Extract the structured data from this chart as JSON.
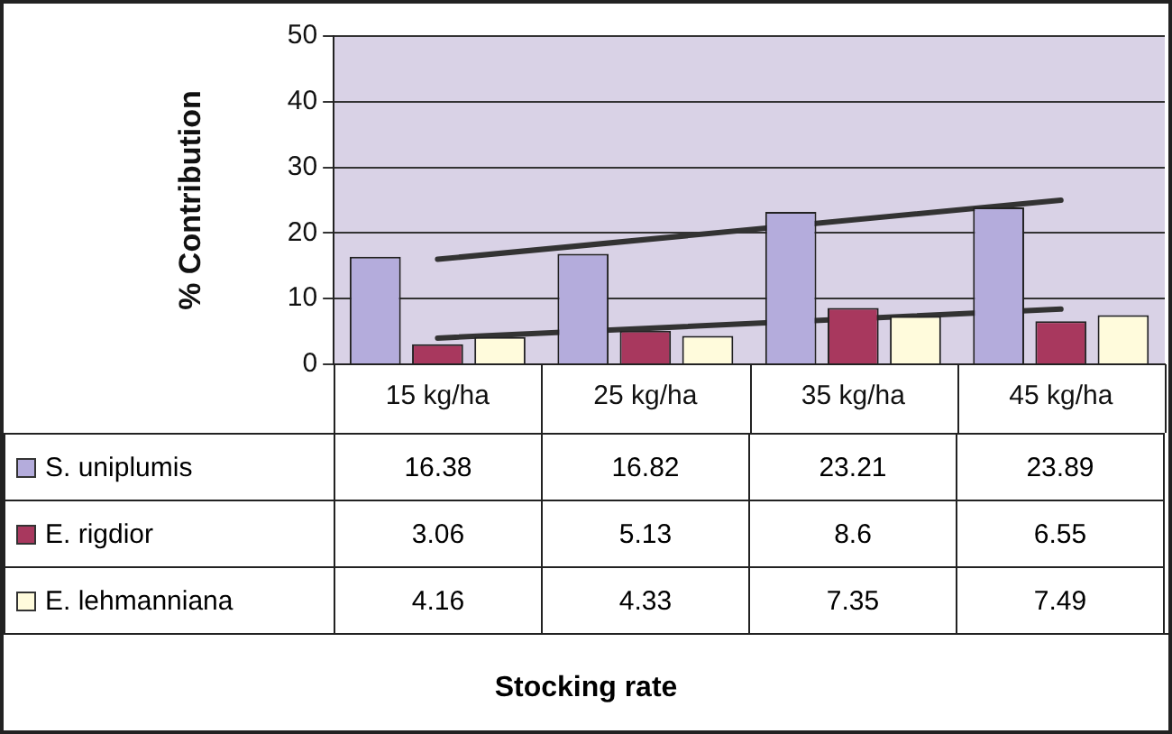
{
  "chart_data": {
    "type": "bar",
    "ylabel": "% Contribution",
    "annotations": [
      "Stocking rate"
    ],
    "categories": [
      "15 kg/ha",
      "25 kg/ha",
      "35 kg/ha",
      "45 kg/ha"
    ],
    "series": [
      {
        "name": "S. uniplumis",
        "color": "#b4acdc",
        "values": [
          16.38,
          16.82,
          23.21,
          23.89
        ]
      },
      {
        "name": "E. rigdior",
        "color": "#a8385e",
        "values": [
          3.06,
          5.13,
          8.6,
          6.55
        ]
      },
      {
        "name": "E. lehmanniana",
        "color": "#fffbdc",
        "values": [
          4.16,
          4.33,
          7.35,
          7.49
        ]
      },
      {
        "type": "line",
        "color": "#333333",
        "x": [
          "15 kg/ha",
          "45 kg/ha"
        ],
        "values": [
          16,
          25
        ],
        "value_labels": [
          null,
          null
        ]
      },
      {
        "type": "line",
        "color": "#333333",
        "x": [
          "15 kg/ha",
          "45 kg/ha"
        ],
        "values": [
          4,
          8.4
        ],
        "value_labels": [
          null,
          null
        ]
      }
    ],
    "ylim": [
      0,
      50
    ],
    "yticks": [
      0,
      10,
      20,
      30,
      40,
      50
    ],
    "grid": "y",
    "legend": "bottom",
    "data_labels": true
  }
}
